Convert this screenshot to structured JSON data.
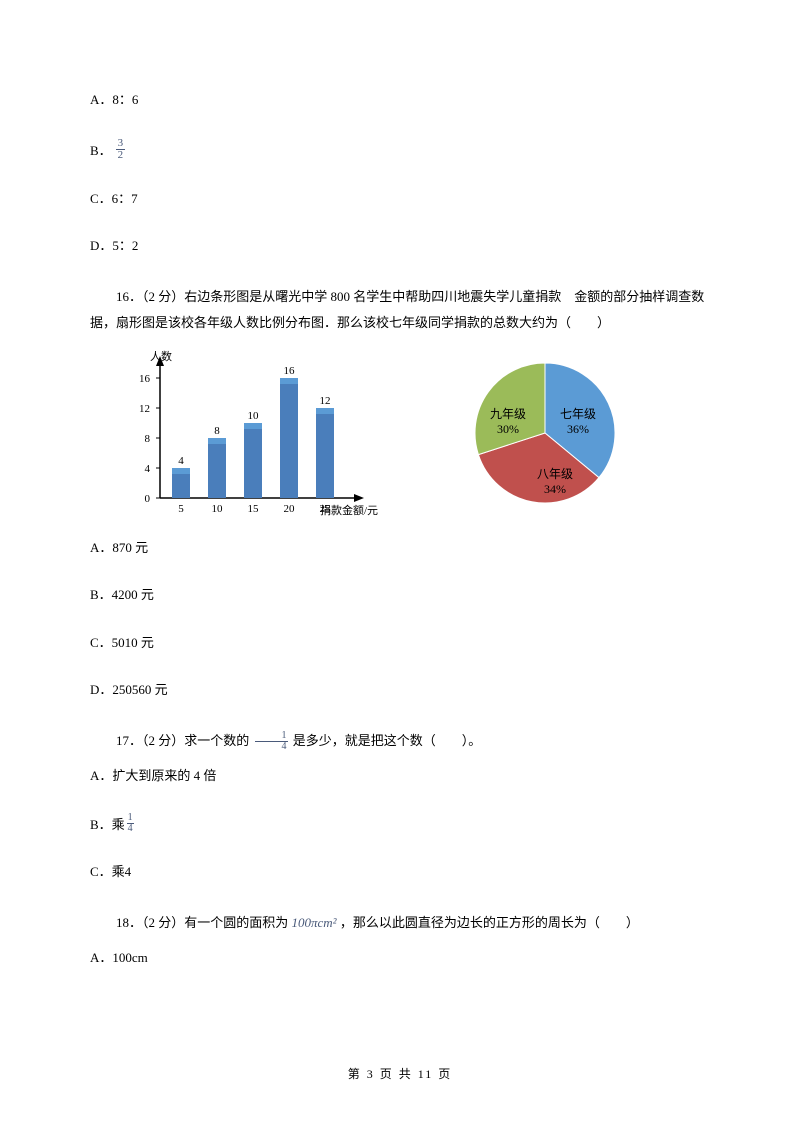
{
  "options_15": {
    "a": "A．8：6",
    "b_prefix": "B．",
    "b_num": "3",
    "b_den": "2",
    "c": "C．6：7",
    "d": "D．5：2"
  },
  "q16": {
    "text": "16．（2 分）右边条形图是从曙光中学 800 名学生中帮助四川地震失学儿童捐款　金额的部分抽样调查数据，扇形图是该校各年级人数比例分布图．那么该校七年级同学捐款的总数大约为（　　）",
    "a": "A．870 元",
    "b": "B．4200 元",
    "c": "C．5010 元",
    "d": "D．250560 元"
  },
  "bar_chart": {
    "y_title": "人数",
    "x_title": "捐款金额/元",
    "y_ticks": [
      "0",
      "4",
      "8",
      "12",
      "16"
    ],
    "x_ticks": [
      "5",
      "10",
      "15",
      "20",
      "25"
    ],
    "bars": [
      {
        "label": "4",
        "value": 4
      },
      {
        "label": "8",
        "value": 8
      },
      {
        "label": "10",
        "value": 10
      },
      {
        "label": "16",
        "value": 16
      },
      {
        "label": "12",
        "value": 12
      }
    ],
    "bar_color": "#4a7ebb",
    "bar_highlight": "#5b9bd5",
    "axis_color": "#000000",
    "text_color": "#000000"
  },
  "pie_chart": {
    "slices": [
      {
        "label": "七年级",
        "pct": "36%",
        "color": "#5b9bd5",
        "end_angle": 129.6
      },
      {
        "label": "八年级",
        "pct": "34%",
        "color": "#c0504d"
      },
      {
        "label": "九年级",
        "pct": "30%",
        "color": "#9bbb59"
      }
    ]
  },
  "q17": {
    "prefix": "17．（2 分）求一个数的 ",
    "frac_num": "1",
    "frac_den": "4",
    "suffix": " 是多少，就是把这个数（　　）。",
    "a": "A．扩大到原来的 4 倍",
    "b_prefix": "B．乘 ",
    "b_num": "1",
    "b_den": "4",
    "c": "C．乘4"
  },
  "q18": {
    "prefix": "18．（2 分）有一个圆的面积为 ",
    "formula": "100πcm²",
    "suffix": " ，那么以此圆直径为边长的正方形的周长为（　　）",
    "a": "A．100cm"
  },
  "footer": "第 3 页 共 11 页"
}
